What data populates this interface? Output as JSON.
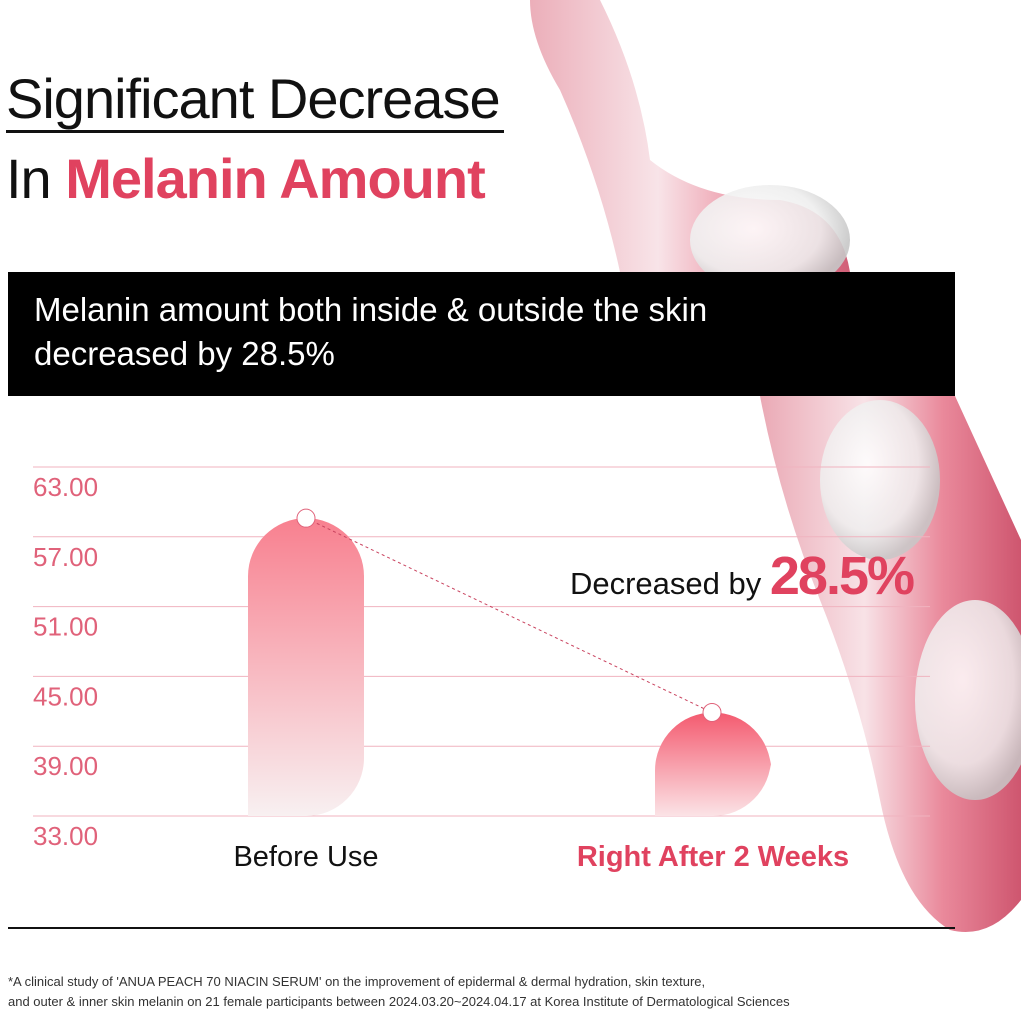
{
  "title": {
    "line1": "Significant Decrease",
    "line2_prefix": "In ",
    "line2_accent": "Melanin Amount"
  },
  "banner": {
    "line1": "Melanin amount both inside & outside the skin",
    "line2": "decreased by 28.5%"
  },
  "colors": {
    "accent": "#e0425f",
    "axis_label": "#e0627a",
    "gridline": "#f0b3bf",
    "bar_top": "#f8808f"
  },
  "chart_data": {
    "type": "bar",
    "categories": [
      "Before Use",
      "Right After 2 Weeks"
    ],
    "values": [
      58.6,
      41.9
    ],
    "ylim": [
      33,
      63
    ],
    "yticks": [
      "63.00",
      "57.00",
      "51.00",
      "45.00",
      "39.00",
      "33.00"
    ],
    "grid": true,
    "annotation": {
      "prefix": "Decreased by ",
      "value": "28.5%"
    }
  },
  "footnote": {
    "line1": "*A clinical study of 'ANUA PEACH 70 NIACIN SERUM' on the improvement of epidermal & dermal hydration, skin texture,",
    "line2": "and outer & inner skin melanin on 21 female participants between 2024.03.20~2024.04.17 at Korea Institute of Dermatological Sciences"
  }
}
